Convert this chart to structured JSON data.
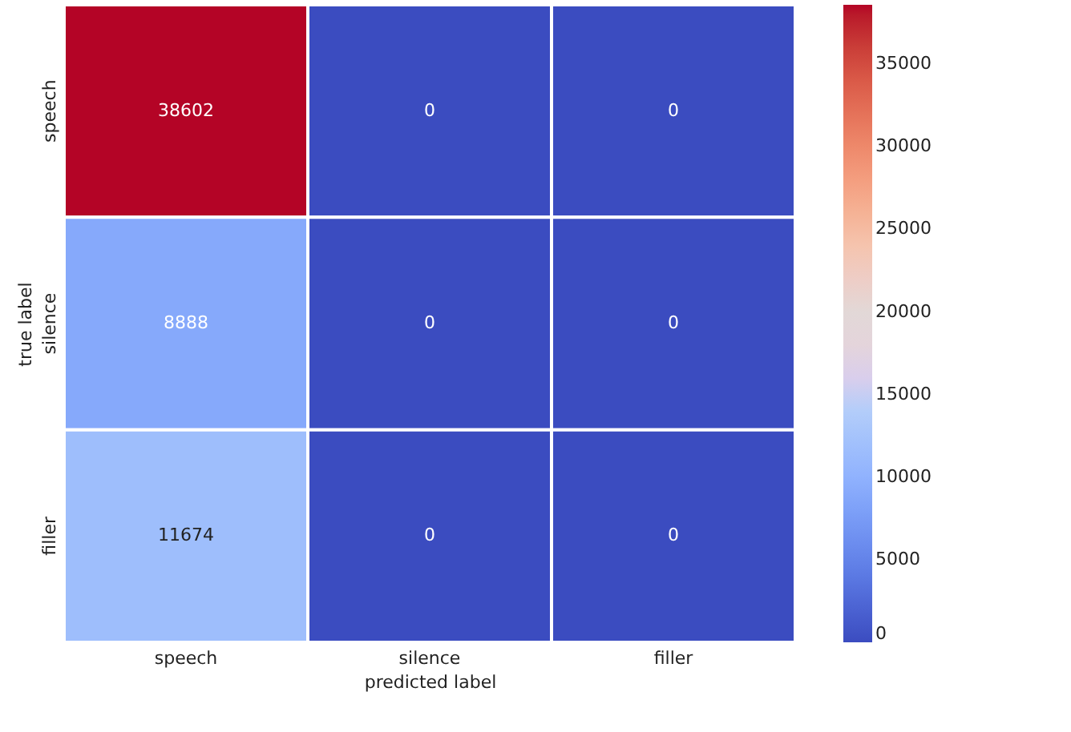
{
  "chart_data": {
    "type": "heatmap",
    "xlabel": "predicted label",
    "ylabel": "true label",
    "categories": [
      "speech",
      "silence",
      "filler"
    ],
    "y_categories": [
      "speech",
      "silence",
      "filler"
    ],
    "cells": [
      [
        38602,
        0,
        0
      ],
      [
        8888,
        0,
        0
      ],
      [
        11674,
        0,
        0
      ]
    ],
    "clim": [
      0,
      38602
    ],
    "cticks": [
      0,
      5000,
      10000,
      15000,
      20000,
      25000,
      30000,
      35000
    ],
    "data_labels": true
  }
}
